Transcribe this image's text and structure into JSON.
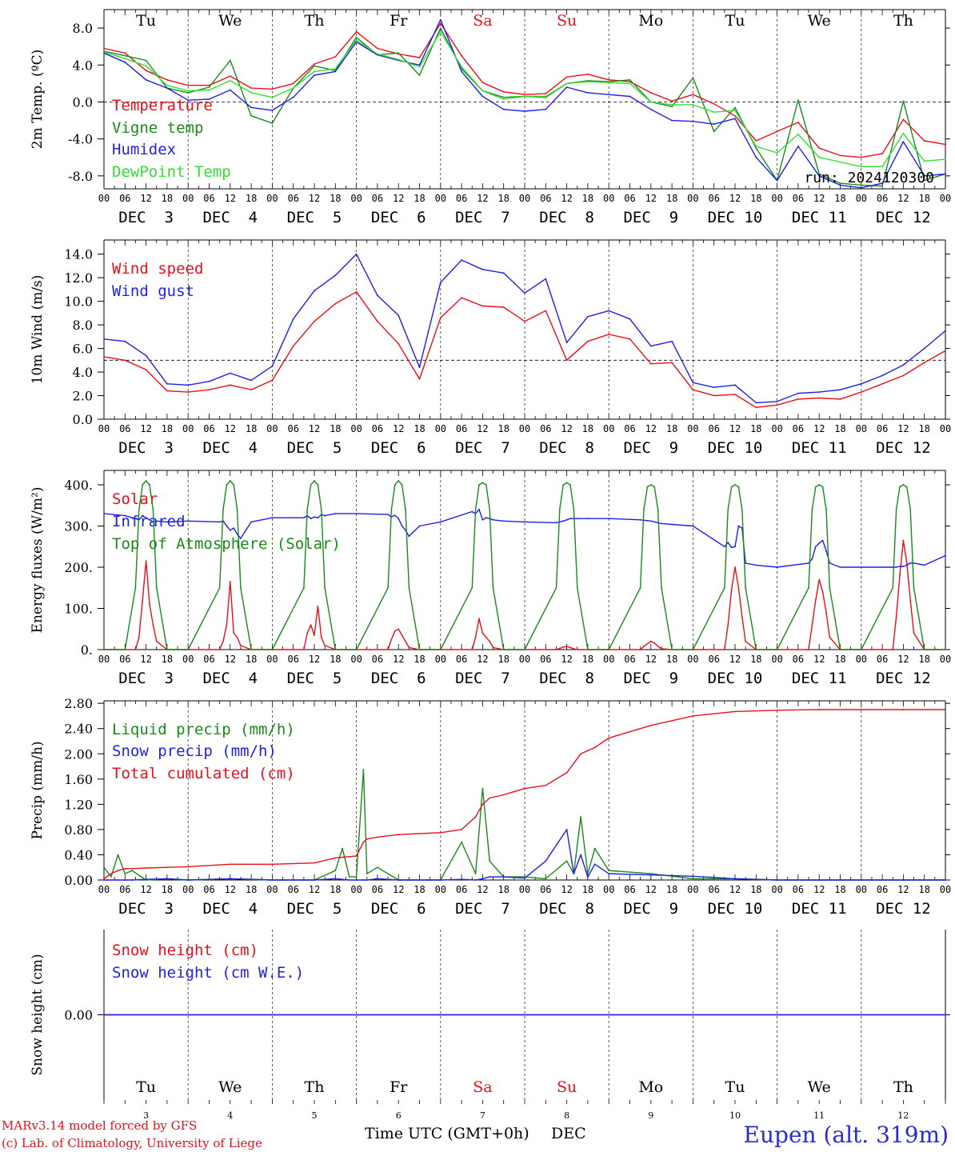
{
  "meta": {
    "run_label": "run: 2024120300",
    "station": "Eupen (alt. 319m)"
  },
  "credits": [
    "MARv3.14 model forced by GFS",
    "(c) Lab. of Climatology, University of Liege"
  ],
  "x_axis_title": "Time UTC (GMT+0h)",
  "x_axis_month": "DEC",
  "hour_ticks": [
    "00",
    "06",
    "12",
    "18"
  ],
  "day_names": [
    "Tu",
    "We",
    "Th",
    "Fr",
    "Sa",
    "Su",
    "Mo",
    "Tu",
    "We",
    "Th"
  ],
  "day_numbers": [
    "3",
    "4",
    "5",
    "6",
    "7",
    "8",
    "9",
    "10",
    "11",
    "12"
  ],
  "date_labels": [
    "DEC  3",
    "DEC  4",
    "DEC  5",
    "DEC  6",
    "DEC  7",
    "DEC  8",
    "DEC  9",
    "DEC 10",
    "DEC 11",
    "DEC 12"
  ],
  "colors": {
    "weekday": "#000000",
    "weekend": "#e8101a",
    "red": "#e8101a",
    "blue": "#1f1fe6",
    "darkgreen": "#1a8a1a",
    "lightgreen": "#33dd33",
    "grid": "#333333"
  },
  "chart_data": [
    {
      "type": "line",
      "ylabel": "2m Temp. (ºC)",
      "ylim": [
        -9.4,
        10.0
      ],
      "yticks": [
        "8.0",
        "4.0",
        "0.0",
        "-4.0",
        "-8.0"
      ],
      "ytick_values": [
        8,
        4,
        0,
        -4,
        -8
      ],
      "ref_line": 0,
      "x": [
        0,
        6,
        12,
        18,
        24,
        30,
        36,
        42,
        48,
        54,
        60,
        66,
        72,
        78,
        84,
        90,
        96,
        102,
        108,
        114,
        120,
        126,
        132,
        138,
        144,
        150,
        156,
        162,
        168,
        174,
        180,
        186,
        192,
        198,
        204,
        210,
        216,
        222,
        228,
        234,
        240
      ],
      "series": [
        {
          "name": "Temperature",
          "color": "red",
          "values": [
            5.8,
            5.3,
            3.4,
            2.4,
            1.8,
            1.8,
            2.8,
            1.5,
            1.4,
            2.0,
            4.1,
            4.9,
            7.6,
            5.8,
            5.2,
            4.8,
            8.5,
            5.0,
            2.1,
            1.1,
            0.8,
            0.9,
            2.7,
            3.0,
            2.4,
            2.2,
            1.0,
            0.1,
            0.8,
            -0.2,
            -1.5,
            -4.2,
            -3.2,
            -2.2,
            -5.0,
            -5.8,
            -6.0,
            -5.6,
            -1.9,
            -4.2,
            -4.6
          ]
        },
        {
          "name": "Vigne temp",
          "color": "darkgreen",
          "values": [
            5.5,
            5.0,
            4.5,
            1.5,
            1.0,
            1.6,
            4.5,
            -1.5,
            -2.3,
            1.5,
            3.9,
            3.4,
            7.0,
            5.1,
            5.3,
            2.9,
            8.0,
            3.6,
            1.2,
            0.5,
            0.6,
            0.5,
            2.0,
            2.3,
            2.2,
            2.4,
            0.0,
            -0.5,
            2.6,
            -3.2,
            -0.6,
            -5.0,
            -8.5,
            0.2,
            -7.8,
            -8.8,
            -9.0,
            -9.1,
            0.1,
            -8.5,
            -7.8
          ]
        },
        {
          "name": "Humidex",
          "color": "blue",
          "values": [
            5.3,
            4.3,
            2.4,
            1.5,
            0.2,
            0.3,
            1.3,
            -0.6,
            -0.9,
            0.5,
            2.9,
            3.3,
            6.5,
            5.1,
            4.5,
            4.0,
            8.9,
            3.3,
            0.6,
            -0.8,
            -1.0,
            -0.8,
            1.6,
            1.0,
            0.8,
            0.6,
            -0.8,
            -2.0,
            -2.1,
            -2.4,
            -1.8,
            -6.0,
            -8.5,
            -4.8,
            -8.0,
            -9.0,
            -9.3,
            -8.8,
            -4.3,
            -8.0,
            -7.8
          ]
        },
        {
          "name": "DewPoint Temp",
          "color": "lightgreen",
          "values": [
            5.4,
            4.7,
            3.9,
            1.8,
            1.2,
            1.3,
            2.3,
            1.0,
            0.5,
            1.5,
            3.3,
            3.6,
            6.7,
            5.2,
            4.6,
            3.8,
            7.6,
            3.8,
            1.2,
            0.3,
            0.6,
            0.6,
            2.0,
            2.2,
            2.1,
            2.0,
            0.0,
            -0.3,
            -0.3,
            -1.1,
            -0.9,
            -4.8,
            -5.5,
            -3.5,
            -6.0,
            -6.5,
            -7.0,
            -7.0,
            -3.4,
            -6.4,
            -6.2
          ]
        }
      ]
    },
    {
      "type": "line",
      "ylabel": "10m Wind (m/s)",
      "ylim": [
        0,
        15.2
      ],
      "yticks": [
        "14.0",
        "12.0",
        "10.0",
        "8.0",
        "6.0",
        "4.0",
        "2.0",
        "0.0"
      ],
      "ytick_values": [
        14,
        12,
        10,
        8,
        6,
        4,
        2,
        0
      ],
      "ref_line": 5,
      "x": [
        0,
        6,
        12,
        18,
        24,
        30,
        36,
        42,
        48,
        54,
        60,
        66,
        72,
        78,
        84,
        90,
        96,
        102,
        108,
        114,
        120,
        126,
        132,
        138,
        144,
        150,
        156,
        162,
        168,
        174,
        180,
        186,
        192,
        198,
        204,
        210,
        216,
        222,
        228,
        234,
        240
      ],
      "series": [
        {
          "name": "Wind speed",
          "color": "red",
          "values": [
            5.3,
            5.0,
            4.2,
            2.4,
            2.3,
            2.5,
            2.9,
            2.5,
            3.3,
            6.2,
            8.3,
            9.8,
            10.8,
            8.3,
            6.4,
            3.4,
            8.6,
            10.3,
            9.6,
            9.5,
            8.3,
            9.2,
            5.0,
            6.6,
            7.2,
            6.8,
            4.7,
            4.8,
            2.5,
            2.0,
            2.1,
            1.0,
            1.2,
            1.7,
            1.8,
            1.7,
            2.3,
            3.0,
            3.7,
            4.8,
            5.8
          ]
        },
        {
          "name": "Wind gust",
          "color": "blue",
          "values": [
            6.8,
            6.6,
            5.4,
            3.0,
            2.9,
            3.2,
            3.9,
            3.3,
            4.5,
            8.5,
            10.9,
            12.2,
            14.0,
            10.5,
            8.8,
            4.4,
            11.6,
            13.5,
            12.7,
            12.4,
            10.7,
            11.9,
            6.5,
            8.7,
            9.2,
            8.5,
            6.2,
            6.6,
            3.1,
            2.7,
            2.9,
            1.4,
            1.5,
            2.2,
            2.3,
            2.5,
            3.0,
            3.7,
            4.6,
            6.0,
            7.5
          ]
        }
      ]
    },
    {
      "type": "line",
      "ylabel": "Energy fluxes (W/m²)",
      "ylim": [
        0,
        435
      ],
      "yticks": [
        "400.",
        "300.",
        "200.",
        "100.",
        "0."
      ],
      "ytick_values": [
        400,
        300,
        200,
        100,
        0
      ],
      "x": [
        0,
        6,
        9,
        10,
        11,
        12,
        13,
        14,
        15,
        18,
        24,
        33,
        34,
        35,
        36,
        37,
        38,
        39,
        42,
        48,
        57,
        58,
        59,
        60,
        61,
        62,
        63,
        66,
        72,
        81,
        82,
        83,
        84,
        85,
        86,
        87,
        90,
        96,
        105,
        106,
        107,
        108,
        109,
        110,
        111,
        114,
        120,
        129,
        130,
        131,
        132,
        133,
        134,
        135,
        138,
        144,
        153,
        154,
        155,
        156,
        157,
        158,
        159,
        162,
        168,
        177,
        178,
        179,
        180,
        181,
        182,
        183,
        186,
        192,
        201,
        202,
        203,
        204,
        205,
        206,
        207,
        210,
        216,
        225,
        226,
        227,
        228,
        229,
        230,
        231,
        234,
        240
      ],
      "series": [
        {
          "name": "Solar",
          "color": "red",
          "values": [
            0,
            0,
            0,
            30,
            120,
            215,
            110,
            60,
            20,
            0,
            0,
            0,
            20,
            60,
            165,
            40,
            30,
            10,
            0,
            0,
            0,
            40,
            60,
            35,
            105,
            30,
            10,
            0,
            0,
            0,
            25,
            45,
            50,
            35,
            20,
            5,
            0,
            0,
            0,
            30,
            75,
            40,
            30,
            20,
            5,
            0,
            0,
            0,
            3,
            6,
            8,
            5,
            2,
            0,
            0,
            0,
            0,
            8,
            14,
            20,
            16,
            8,
            2,
            0,
            0,
            0,
            60,
            145,
            200,
            150,
            80,
            20,
            0,
            0,
            0,
            60,
            120,
            170,
            140,
            90,
            30,
            0,
            0,
            0,
            80,
            180,
            265,
            210,
            120,
            40,
            0,
            0
          ]
        },
        {
          "name": "Infrared",
          "color": "blue",
          "values": [
            330,
            325,
            318,
            315,
            325,
            320,
            315,
            310,
            312,
            310,
            312,
            310,
            312,
            300,
            290,
            295,
            280,
            270,
            310,
            320,
            320,
            325,
            318,
            322,
            320,
            328,
            325,
            330,
            330,
            328,
            322,
            326,
            318,
            300,
            290,
            275,
            300,
            310,
            335,
            330,
            340,
            315,
            320,
            318,
            315,
            312,
            310,
            308,
            310,
            312,
            315,
            318,
            318,
            318,
            318,
            318,
            315,
            314,
            313,
            312,
            310,
            308,
            306,
            304,
            300,
            250,
            260,
            248,
            250,
            300,
            295,
            210,
            205,
            200,
            210,
            220,
            250,
            258,
            265,
            240,
            210,
            200,
            200,
            200,
            200,
            202,
            202,
            205,
            210,
            210,
            205,
            228
          ]
        },
        {
          "name": "Top of Atmosphere (Solar)",
          "color": "darkgreen",
          "values": [
            0,
            0,
            150,
            340,
            400,
            410,
            400,
            340,
            150,
            0,
            0,
            150,
            340,
            400,
            410,
            400,
            340,
            150,
            0,
            0,
            150,
            340,
            400,
            410,
            400,
            340,
            150,
            0,
            0,
            150,
            340,
            400,
            410,
            400,
            340,
            150,
            0,
            0,
            150,
            340,
            400,
            405,
            400,
            340,
            150,
            0,
            0,
            150,
            340,
            400,
            405,
            400,
            340,
            150,
            0,
            0,
            150,
            340,
            395,
            400,
            395,
            340,
            150,
            0,
            0,
            150,
            340,
            395,
            400,
            395,
            340,
            150,
            0,
            0,
            150,
            340,
            395,
            400,
            395,
            340,
            150,
            0,
            0,
            150,
            340,
            395,
            400,
            395,
            340,
            150,
            0,
            0
          ]
        }
      ]
    },
    {
      "type": "line",
      "ylabel": "Precip (mm/h)",
      "ylim": [
        0,
        2.84
      ],
      "yticks": [
        "2.80",
        "2.40",
        "2.00",
        "1.60",
        "1.20",
        "0.80",
        "0.40",
        "0.00"
      ],
      "ytick_values": [
        2.8,
        2.4,
        2.0,
        1.6,
        1.2,
        0.8,
        0.4,
        0.0
      ],
      "x": [
        0,
        2,
        4,
        6,
        8,
        12,
        18,
        24,
        36,
        48,
        60,
        66,
        68,
        70,
        72,
        74,
        75,
        78,
        84,
        96,
        102,
        106,
        108,
        110,
        114,
        120,
        126,
        132,
        134,
        136,
        138,
        140,
        144,
        156,
        168,
        180,
        192,
        204,
        216,
        228,
        240
      ],
      "series": [
        {
          "name": "Liquid precip (mm/h)",
          "color": "darkgreen",
          "values": [
            0.2,
            0.05,
            0.4,
            0.1,
            0.15,
            0,
            0.02,
            0,
            0.02,
            0,
            0,
            0.15,
            0.5,
            0.05,
            0.05,
            1.75,
            0.1,
            0.2,
            0,
            0,
            0.6,
            0.1,
            1.45,
            0.3,
            0.05,
            0.05,
            0.02,
            0.3,
            0.1,
            1.0,
            0.1,
            0.5,
            0.15,
            0.1,
            0.02,
            0.02,
            0,
            0,
            0,
            0,
            0
          ]
        },
        {
          "name": "Snow precip (mm/h)",
          "color": "blue",
          "values": [
            0,
            0,
            0,
            0,
            0,
            0.01,
            0.02,
            0,
            0.02,
            0,
            0,
            0.02,
            0.01,
            0,
            0,
            0,
            0,
            0.02,
            0,
            0,
            0.01,
            0,
            0.02,
            0.05,
            0.05,
            0.03,
            0.3,
            0.8,
            0.1,
            0.4,
            0.05,
            0.25,
            0.1,
            0.08,
            0.06,
            0.02,
            0,
            0,
            0,
            0,
            0
          ]
        },
        {
          "name": "Total cumulated (cm)",
          "color": "red",
          "values": [
            0.02,
            0.1,
            0.15,
            0.18,
            0.18,
            0.19,
            0.2,
            0.21,
            0.25,
            0.25,
            0.27,
            0.35,
            0.36,
            0.37,
            0.38,
            0.6,
            0.65,
            0.68,
            0.72,
            0.75,
            0.8,
            1.0,
            1.2,
            1.3,
            1.35,
            1.45,
            1.5,
            1.7,
            1.85,
            2.0,
            2.05,
            2.1,
            2.25,
            2.45,
            2.6,
            2.67,
            2.69,
            2.7,
            2.7,
            2.7,
            2.7
          ]
        }
      ]
    },
    {
      "type": "line",
      "ylabel": "Snow height (cm)",
      "ylim": [
        -1,
        1
      ],
      "yticks": [
        "0.00"
      ],
      "ytick_values": [
        0
      ],
      "x": [
        0,
        240
      ],
      "series": [
        {
          "name": "Snow height (cm)",
          "color": "red",
          "values": [
            0,
            0
          ]
        },
        {
          "name": "Snow height (cm W.E.)",
          "color": "blue",
          "values": [
            0,
            0
          ]
        }
      ]
    }
  ]
}
